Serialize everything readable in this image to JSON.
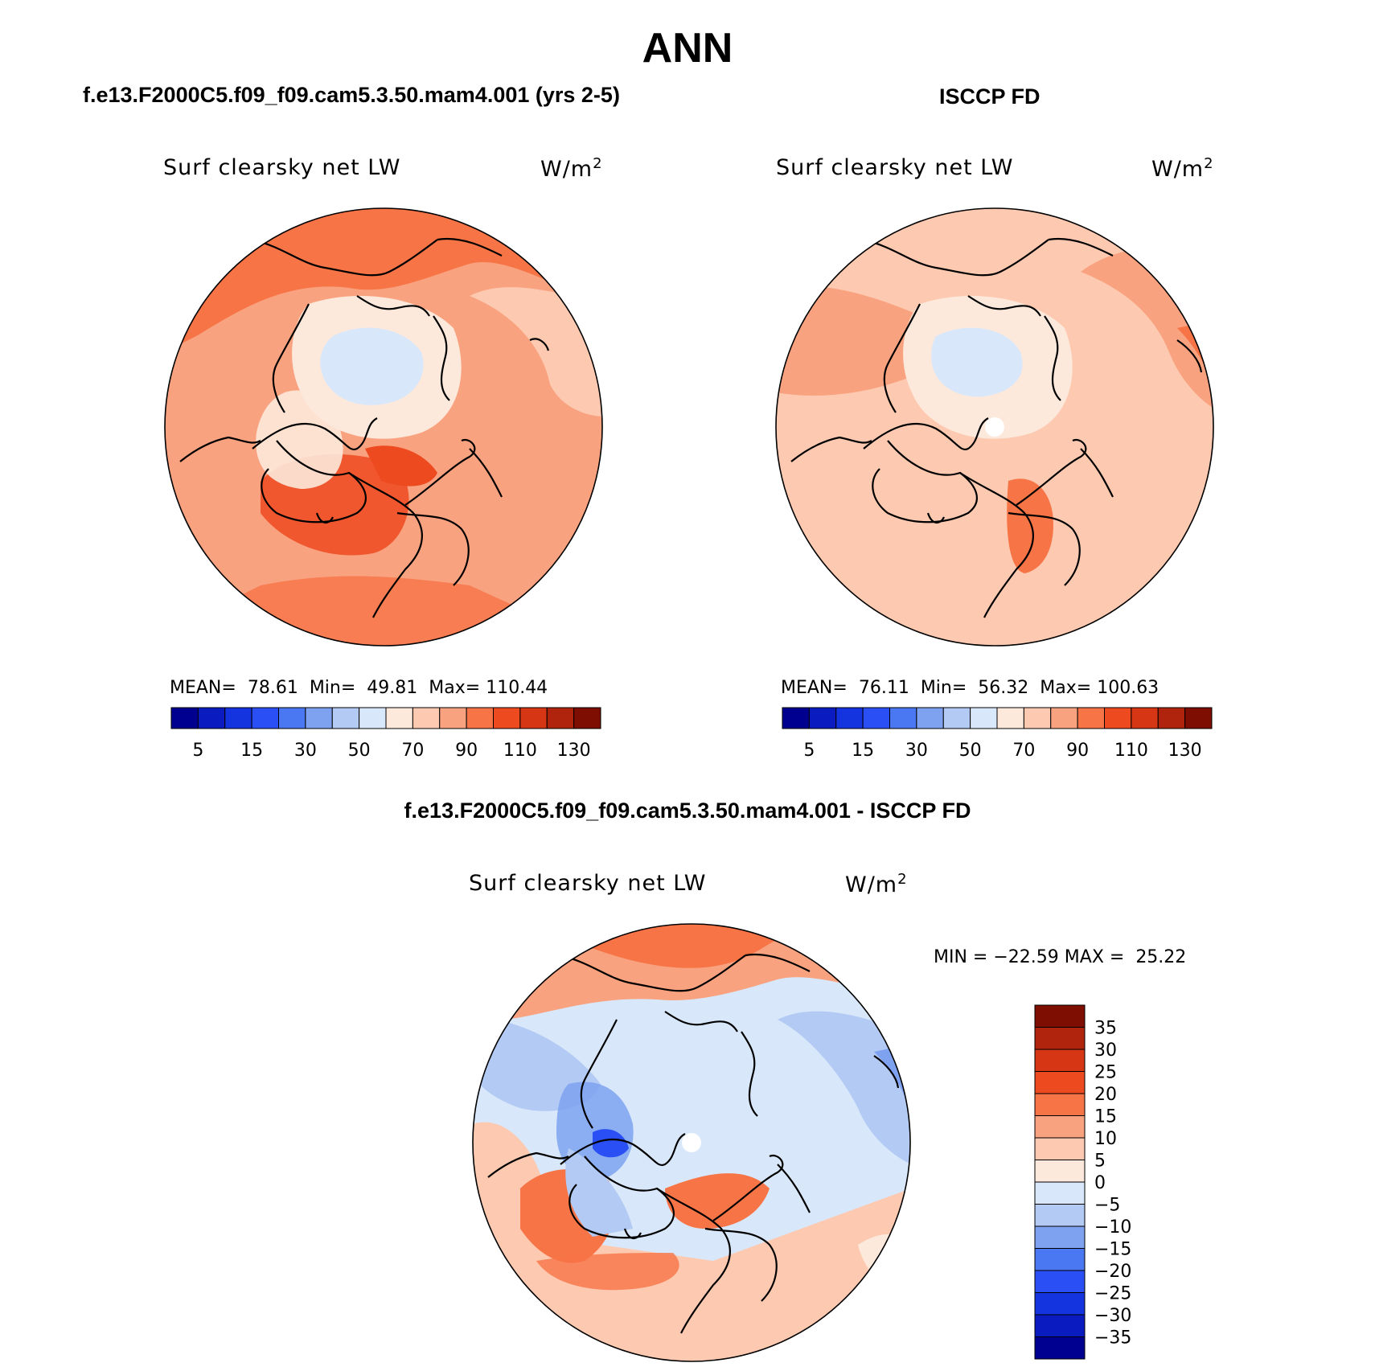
{
  "title": "ANN",
  "panels": {
    "model": {
      "header": "f.e13.F2000C5.f09_f09.cam5.3.50.mam4.001 (yrs 2-5)",
      "variable": "Surf clearsky net LW",
      "units": "W/m",
      "units_sup": "2",
      "stats": {
        "mean_label": "MEAN=",
        "mean": "78.61",
        "min_label": "Min=",
        "min": "49.81",
        "max_label": "Max=",
        "max": "110.44"
      }
    },
    "obs": {
      "header": "ISCCP FD",
      "variable": "Surf clearsky net LW",
      "units": "W/m",
      "units_sup": "2",
      "stats": {
        "mean_label": "MEAN=",
        "mean": "76.11",
        "min_label": "Min=",
        "min": "56.32",
        "max_label": "Max=",
        "max": "100.63"
      }
    },
    "diff": {
      "header": "f.e13.F2000C5.f09_f09.cam5.3.50.mam4.001 - ISCCP FD",
      "variable": "Surf clearsky net LW",
      "units": "W/m",
      "units_sup": "2",
      "stats": {
        "min_label": "MIN =",
        "min": "−22.59",
        "max_label": "MAX =",
        "max": "25.22"
      }
    }
  },
  "chart_data": [
    {
      "type": "heatmap",
      "projection": "north-polar-stereographic",
      "title": "Surf clearsky net LW",
      "units": "W/m2",
      "dataset": "f.e13.F2000C5.f09_f09.cam5.3.50.mam4.001 (yrs 2-5)",
      "mean": 78.61,
      "min": 49.81,
      "max": 110.44,
      "colorbar": {
        "orientation": "horizontal",
        "levels": [
          5,
          10,
          15,
          20,
          30,
          40,
          50,
          60,
          70,
          80,
          90,
          100,
          110,
          120,
          130
        ],
        "tick_labels": [
          "5",
          "15",
          "30",
          "50",
          "70",
          "90",
          "110",
          "130"
        ],
        "colors": [
          "#000090",
          "#0a1cbf",
          "#1434e0",
          "#2a50f5",
          "#4a78f2",
          "#7ea2f0",
          "#b2caf4",
          "#d8e8fa",
          "#fde9dc",
          "#fdc9b0",
          "#f9a27f",
          "#f77447",
          "#ee4a20",
          "#d63613",
          "#b0230c",
          "#7e0d02"
        ]
      }
    },
    {
      "type": "heatmap",
      "projection": "north-polar-stereographic",
      "title": "Surf clearsky net LW",
      "units": "W/m2",
      "dataset": "ISCCP FD",
      "mean": 76.11,
      "min": 56.32,
      "max": 100.63,
      "colorbar": {
        "orientation": "horizontal",
        "levels": [
          5,
          10,
          15,
          20,
          30,
          40,
          50,
          60,
          70,
          80,
          90,
          100,
          110,
          120,
          130
        ],
        "tick_labels": [
          "5",
          "15",
          "30",
          "50",
          "70",
          "90",
          "110",
          "130"
        ],
        "colors": [
          "#000090",
          "#0a1cbf",
          "#1434e0",
          "#2a50f5",
          "#4a78f2",
          "#7ea2f0",
          "#b2caf4",
          "#d8e8fa",
          "#fde9dc",
          "#fdc9b0",
          "#f9a27f",
          "#f77447",
          "#ee4a20",
          "#d63613",
          "#b0230c",
          "#7e0d02"
        ]
      }
    },
    {
      "type": "heatmap",
      "projection": "north-polar-stereographic",
      "title": "Surf clearsky net LW",
      "units": "W/m2",
      "dataset": "f.e13.F2000C5.f09_f09.cam5.3.50.mam4.001 - ISCCP FD",
      "min": -22.59,
      "max": 25.22,
      "colorbar": {
        "orientation": "vertical",
        "levels": [
          -35,
          -30,
          -25,
          -20,
          -15,
          -10,
          -5,
          0,
          5,
          10,
          15,
          20,
          25,
          30,
          35
        ],
        "tick_labels": [
          "35",
          "30",
          "25",
          "20",
          "15",
          "10",
          "5",
          "0",
          "−5",
          "−10",
          "−15",
          "−20",
          "−25",
          "−30",
          "−35"
        ],
        "colors": [
          "#000090",
          "#0a1cbf",
          "#1434e0",
          "#2a50f5",
          "#4a78f2",
          "#7ea2f0",
          "#b2caf4",
          "#d8e8fa",
          "#fde9dc",
          "#fdc9b0",
          "#f9a27f",
          "#f77447",
          "#ee4a20",
          "#d63613",
          "#b0230c",
          "#7e0d02"
        ]
      }
    }
  ]
}
